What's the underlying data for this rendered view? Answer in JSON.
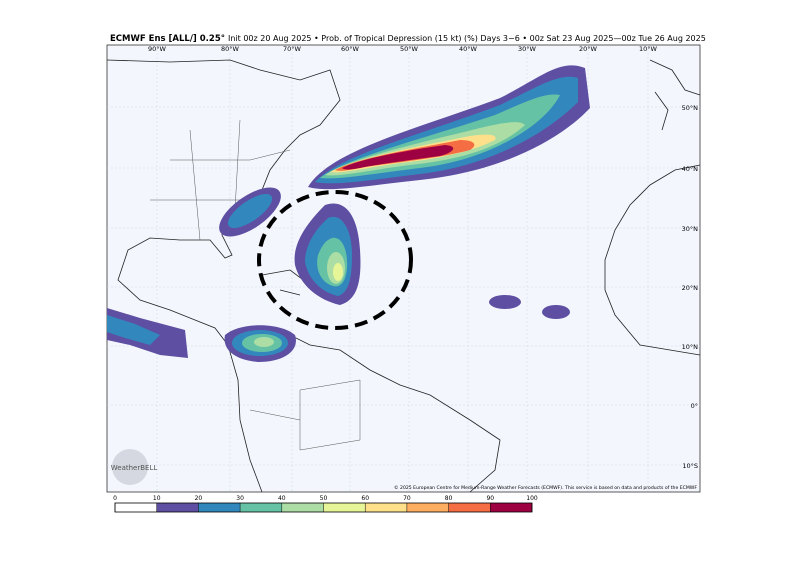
{
  "header": {
    "model": "ECMWF Ens [ALL/] 0.25°",
    "description": "Init 00z 20 Aug 2025 • Prob. of Tropical Depression (15 kt) (%) Days 3−6 • 00z Sat 23 Aug 2025—00z Tue 26 Aug 2025"
  },
  "lon_labels": [
    "90°W",
    "80°W",
    "70°W",
    "60°W",
    "50°W",
    "40°W",
    "30°W",
    "20°W",
    "10°W"
  ],
  "lat_labels": [
    "50°N",
    "40°N",
    "30°N",
    "20°N",
    "10°N",
    "0°",
    "10°S"
  ],
  "colorbar": {
    "ticks": [
      0,
      10,
      20,
      30,
      40,
      50,
      60,
      70,
      80,
      90,
      100
    ],
    "colors": [
      "#ffffff",
      "#5e4fa2",
      "#3288bd",
      "#66c2a5",
      "#abdda4",
      "#e6f598",
      "#fee08b",
      "#fdae61",
      "#f46d43",
      "#9e0142"
    ]
  },
  "copyright": "© 2025 European Centre for Medium-Range Weather Forecasts (ECMWF). This service is based on data and products of the ECMWF",
  "logo": "WeatherBELL"
}
